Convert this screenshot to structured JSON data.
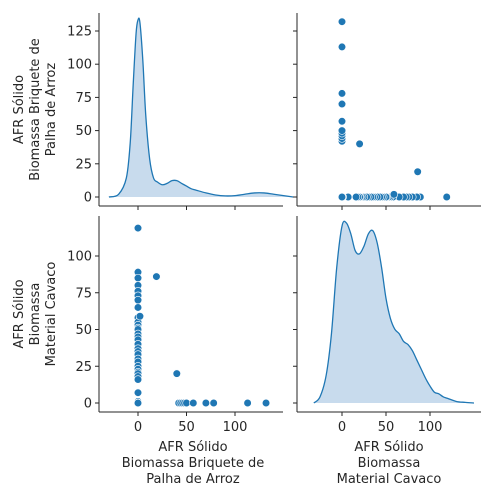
{
  "chart_data": {
    "type": "pairplot",
    "variables": [
      {
        "name": "AFR Sólido Biomassa Briquete de Palha de Arroz",
        "label_lines": [
          "AFR Sólido",
          "Biomassa Briquete de",
          "Palha de Arroz"
        ],
        "range": [
          -42,
          170
        ],
        "ticks": [
          0,
          50,
          100
        ],
        "y_ticks": [
          0,
          25,
          50,
          75,
          100,
          125
        ]
      },
      {
        "name": "AFR Sólido Biomassa Material Cavaco",
        "label_lines": [
          "AFR Sólido",
          "Biomassa",
          "Material Cavaco"
        ],
        "range": [
          -6,
          124
        ],
        "ticks": [
          0,
          50,
          100
        ],
        "y_ticks": [
          0,
          25,
          50,
          75,
          100
        ]
      }
    ],
    "colors": {
      "marker": "#1f77b4",
      "kde_line": "#1f77b4",
      "kde_fill": "#c5d9ec"
    },
    "kde_0": {
      "x": [
        -30,
        -20,
        -12,
        -8,
        -5,
        -2,
        0,
        2,
        5,
        8,
        12,
        16,
        20,
        25,
        30,
        35,
        40,
        45,
        50,
        55,
        60,
        70,
        80,
        90,
        100,
        110,
        120,
        130,
        140,
        150,
        160
      ],
      "density": [
        0,
        2,
        14,
        40,
        82,
        120,
        130,
        128,
        100,
        60,
        28,
        14,
        11,
        9,
        10,
        12,
        12,
        10,
        8,
        6,
        5,
        3,
        1.5,
        0.8,
        1,
        2,
        3,
        3,
        2,
        1,
        0
      ]
    },
    "kde_1": {
      "x": [
        -32,
        -25,
        -18,
        -12,
        -6,
        0,
        5,
        10,
        15,
        20,
        25,
        30,
        35,
        40,
        45,
        50,
        55,
        60,
        65,
        70,
        75,
        80,
        85,
        90,
        95,
        100,
        105,
        110,
        115,
        120,
        130,
        140,
        150
      ],
      "density": [
        0,
        4,
        18,
        45,
        88,
        115,
        117,
        110,
        99,
        97,
        102,
        110,
        112,
        104,
        88,
        68,
        55,
        48,
        45,
        40,
        38,
        34,
        28,
        22,
        16,
        11,
        7,
        6,
        4,
        3,
        1,
        0.4,
        0
      ]
    },
    "scatter": {
      "x_briquete": [
        0,
        0,
        0,
        0,
        0,
        0,
        0,
        0,
        0,
        0,
        0,
        0,
        0,
        0,
        0,
        0,
        0,
        0,
        0,
        0,
        0,
        0,
        0,
        0,
        0,
        0,
        0,
        0,
        0,
        0,
        0,
        0,
        0,
        0,
        0,
        0,
        0,
        0,
        0,
        0,
        0,
        0,
        0,
        0,
        0,
        0,
        0,
        2,
        19,
        40,
        42,
        44,
        46,
        48,
        50,
        57,
        70,
        78,
        113,
        132
      ],
      "y_cavaco": [
        119,
        89,
        85,
        80,
        76,
        73,
        70,
        65,
        58,
        55,
        53,
        51,
        50,
        47,
        45,
        43,
        40,
        37,
        35,
        33,
        30,
        28,
        25,
        23,
        21,
        20,
        18,
        16,
        7,
        1,
        0,
        0,
        0,
        0,
        0,
        0,
        0,
        0,
        0,
        0,
        0,
        0,
        0,
        0,
        0,
        0,
        0,
        59,
        86,
        20,
        0,
        0,
        0,
        0,
        0,
        0,
        0,
        0,
        0,
        0
      ]
    },
    "grid": false,
    "legend": "none"
  }
}
